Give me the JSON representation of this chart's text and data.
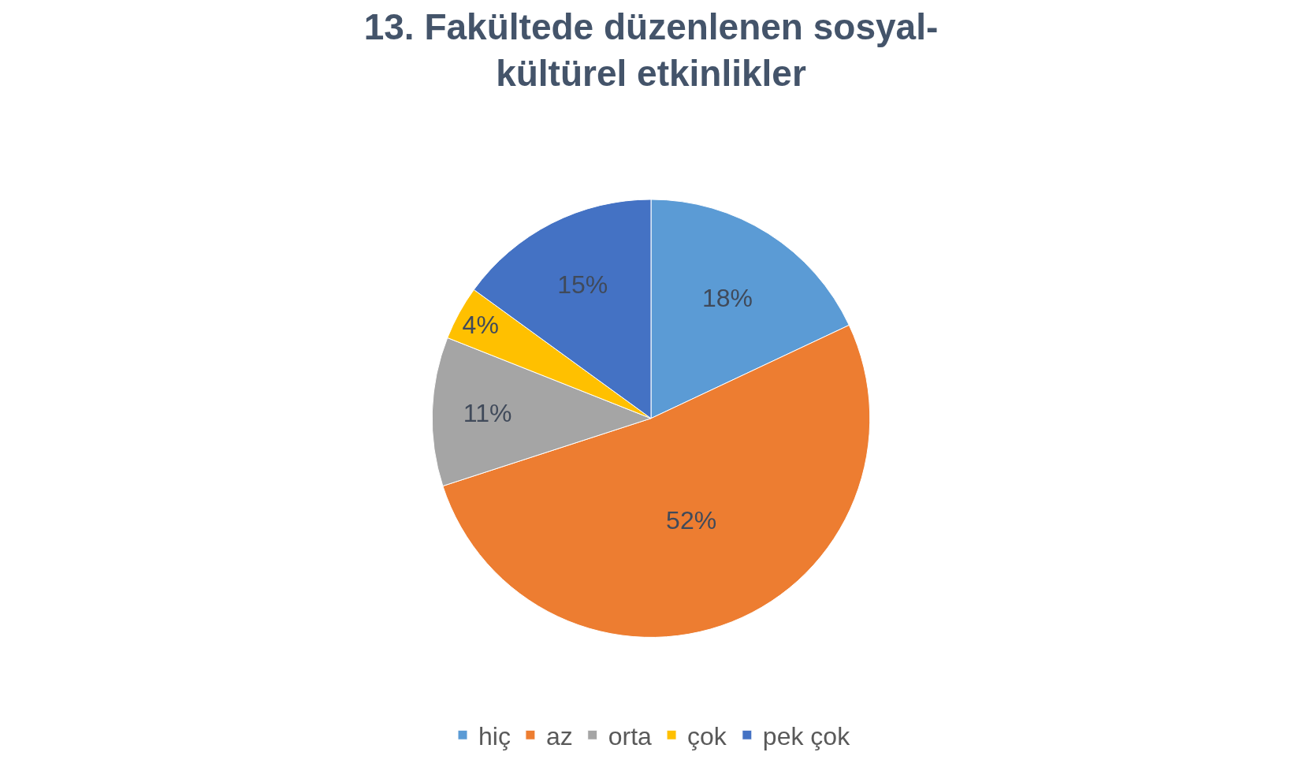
{
  "chart_data": {
    "type": "pie",
    "title": "13. Fakültede düzenlenen sosyal-kültürel etkinlikler",
    "categories": [
      "hiç",
      "az",
      "orta",
      "çok",
      "pek çok"
    ],
    "values": [
      18,
      52,
      11,
      4,
      15
    ],
    "value_labels": [
      "18%",
      "52%",
      "11%",
      "4%",
      "15%"
    ],
    "colors": [
      "#5b9bd5",
      "#ed7d31",
      "#a5a5a5",
      "#ffc000",
      "#4472c4"
    ],
    "legend": "bottom"
  }
}
